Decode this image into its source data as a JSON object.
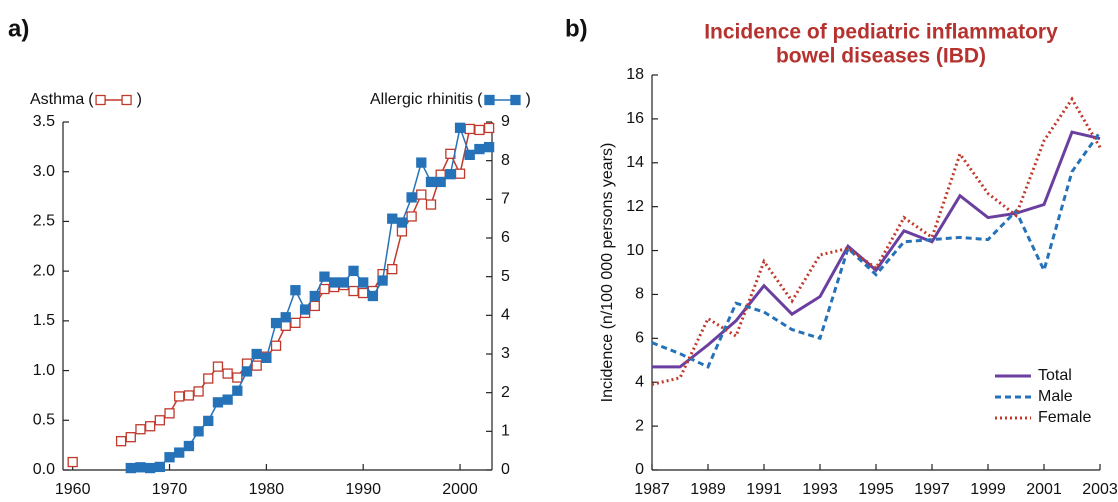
{
  "chart_data": [
    {
      "type": "line",
      "panel_label": "a)",
      "x": [
        1960,
        1963,
        1965,
        1966,
        1967,
        1968,
        1969,
        1970,
        1971,
        1972,
        1973,
        1974,
        1975,
        1976,
        1977,
        1978,
        1979,
        1980,
        1981,
        1982,
        1983,
        1984,
        1985,
        1986,
        1987,
        1988,
        1989,
        1990,
        1991,
        1992,
        1993,
        1994,
        1995,
        1996,
        1997,
        1998,
        1999,
        2000,
        2001,
        2002,
        2003
      ],
      "series": [
        {
          "name": "Asthma",
          "color": "#c0392b",
          "marker": "open-square",
          "values": [
            0.08,
            null,
            0.29,
            0.33,
            0.41,
            0.44,
            0.5,
            0.57,
            0.74,
            0.75,
            0.79,
            0.92,
            1.04,
            0.97,
            0.93,
            1.07,
            1.05,
            1.14,
            1.25,
            1.45,
            1.48,
            1.58,
            1.65,
            1.82,
            1.84,
            1.86,
            1.8,
            1.78,
            1.8,
            1.97,
            2.02,
            2.4,
            2.55,
            2.77,
            2.67,
            2.97,
            3.18,
            2.98,
            3.43,
            3.42,
            3.44
          ]
        },
        {
          "name": "Allergic rhinitis",
          "color": "#2672b8",
          "marker": "square",
          "axis": "y2",
          "values": [
            null,
            null,
            null,
            0.05,
            0.07,
            0.05,
            0.08,
            0.33,
            0.45,
            0.62,
            1.0,
            1.27,
            1.75,
            1.82,
            2.05,
            2.55,
            3.0,
            2.9,
            3.8,
            3.95,
            4.65,
            4.15,
            4.5,
            5.0,
            4.85,
            4.85,
            5.15,
            4.85,
            4.5,
            4.9,
            6.5,
            6.4,
            7.05,
            7.95,
            7.45,
            7.45,
            7.65,
            8.85,
            8.15,
            8.3,
            8.35
          ]
        }
      ],
      "legend_paren": [
        "(",
        ")"
      ],
      "legend": "top",
      "xlim": [
        1959,
        2003.3
      ],
      "xticks": [
        1960,
        1970,
        1980,
        1990,
        2000
      ],
      "ylim": [
        0,
        3.5
      ],
      "yticks": [
        {
          "value": 0,
          "label": "0.0"
        },
        0.5,
        {
          "value": 1,
          "label": "1.0"
        },
        1.5,
        {
          "value": 2,
          "label": "2.0"
        },
        2.5,
        {
          "value": 3,
          "label": "3.0"
        },
        3.5
      ],
      "y2lim": [
        0,
        9
      ],
      "y2ticks": [
        0,
        1,
        2,
        3,
        4,
        5,
        6,
        7,
        8,
        9
      ],
      "grid": false
    },
    {
      "type": "line",
      "panel_label": "b)",
      "title": [
        "Incidence of pediatric inflammatory",
        "bowel diseases (IBD)"
      ],
      "title_color": "#b5322f",
      "ylabel": "Incidence (n/100 000 persons years)",
      "x": [
        1987,
        1988,
        1989,
        1990,
        1991,
        1992,
        1993,
        1994,
        1995,
        1996,
        1997,
        1998,
        1999,
        2000,
        2001,
        2002,
        2003
      ],
      "series": [
        {
          "name": "Total",
          "color": "#6a3fa0",
          "dash": "solid",
          "values": [
            4.7,
            4.7,
            5.7,
            6.8,
            8.4,
            7.1,
            7.9,
            10.2,
            9.1,
            10.9,
            10.4,
            12.5,
            11.5,
            11.7,
            12.1,
            15.4,
            15.1
          ]
        },
        {
          "name": "Male",
          "color": "#2672b8",
          "dash": "dashed",
          "values": [
            5.8,
            5.3,
            4.7,
            7.6,
            7.2,
            6.4,
            6.0,
            10.1,
            8.9,
            10.4,
            10.5,
            10.6,
            10.5,
            11.8,
            9.1,
            13.6,
            15.4
          ]
        },
        {
          "name": "Female",
          "color": "#c0392b",
          "dash": "dotted",
          "values": [
            3.9,
            4.2,
            6.9,
            6.1,
            9.5,
            7.7,
            9.8,
            10.1,
            9.2,
            11.5,
            10.6,
            14.4,
            12.6,
            11.6,
            15.0,
            16.9,
            14.7
          ]
        }
      ],
      "legend": "lower right",
      "xlim": [
        1987,
        2003
      ],
      "xticks": [
        1987,
        1989,
        1991,
        1993,
        1995,
        1997,
        1999,
        2001,
        2003
      ],
      "ylim": [
        0,
        18
      ],
      "yticks": [
        0,
        2,
        4,
        6,
        8,
        10,
        12,
        14,
        16,
        18
      ],
      "grid": false
    }
  ]
}
